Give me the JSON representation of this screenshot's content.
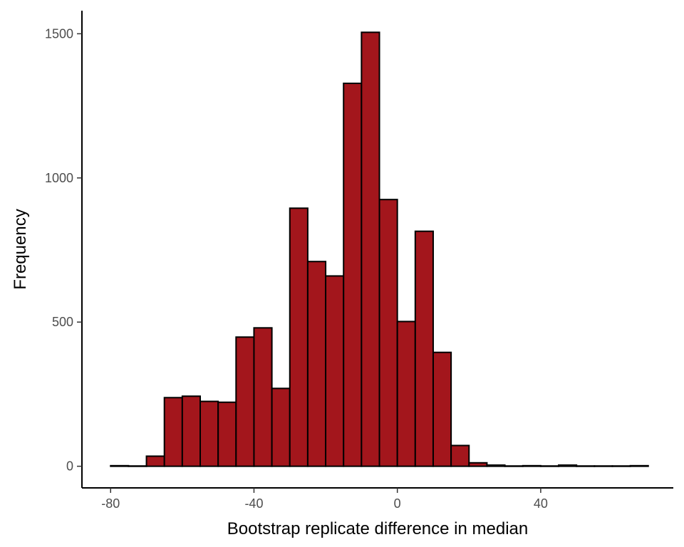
{
  "chart_data": {
    "type": "bar",
    "histogram": true,
    "bin_width": 5,
    "bins": [
      {
        "x0": -80,
        "x1": -75,
        "count": 2
      },
      {
        "x0": -75,
        "x1": -70,
        "count": 1
      },
      {
        "x0": -70,
        "x1": -65,
        "count": 35
      },
      {
        "x0": -65,
        "x1": -60,
        "count": 238
      },
      {
        "x0": -60,
        "x1": -55,
        "count": 243
      },
      {
        "x0": -55,
        "x1": -50,
        "count": 225
      },
      {
        "x0": -50,
        "x1": -45,
        "count": 222
      },
      {
        "x0": -45,
        "x1": -40,
        "count": 448
      },
      {
        "x0": -40,
        "x1": -35,
        "count": 480
      },
      {
        "x0": -35,
        "x1": -30,
        "count": 270
      },
      {
        "x0": -30,
        "x1": -25,
        "count": 895
      },
      {
        "x0": -25,
        "x1": -20,
        "count": 710
      },
      {
        "x0": -20,
        "x1": -15,
        "count": 660
      },
      {
        "x0": -15,
        "x1": -10,
        "count": 1328
      },
      {
        "x0": -10,
        "x1": -5,
        "count": 1505
      },
      {
        "x0": -5,
        "x1": 0,
        "count": 925
      },
      {
        "x0": 0,
        "x1": 5,
        "count": 502
      },
      {
        "x0": 5,
        "x1": 10,
        "count": 815
      },
      {
        "x0": 10,
        "x1": 15,
        "count": 395
      },
      {
        "x0": 15,
        "x1": 20,
        "count": 72
      },
      {
        "x0": 20,
        "x1": 25,
        "count": 12
      },
      {
        "x0": 25,
        "x1": 30,
        "count": 4
      },
      {
        "x0": 30,
        "x1": 35,
        "count": 1
      },
      {
        "x0": 35,
        "x1": 40,
        "count": 2
      },
      {
        "x0": 40,
        "x1": 45,
        "count": 1
      },
      {
        "x0": 45,
        "x1": 50,
        "count": 4
      },
      {
        "x0": 50,
        "x1": 55,
        "count": 1
      },
      {
        "x0": 55,
        "x1": 60,
        "count": 1
      },
      {
        "x0": 60,
        "x1": 65,
        "count": 1
      },
      {
        "x0": 65,
        "x1": 70,
        "count": 2
      }
    ],
    "xlabel": "Bootstrap replicate difference in median",
    "ylabel": "Frequency",
    "xlim": [
      -88,
      77
    ],
    "ylim": [
      -75,
      1580
    ],
    "x_ticks": [
      -80,
      -40,
      0,
      40
    ],
    "x_tick_labels": [
      "-80",
      "-40",
      "0",
      "40"
    ],
    "y_ticks": [
      0,
      500,
      1000,
      1500
    ],
    "y_tick_labels": [
      "0",
      "500",
      "1000",
      "1500"
    ],
    "grid": false,
    "bar_fill": "#a3161c",
    "bar_stroke": "#000000"
  }
}
